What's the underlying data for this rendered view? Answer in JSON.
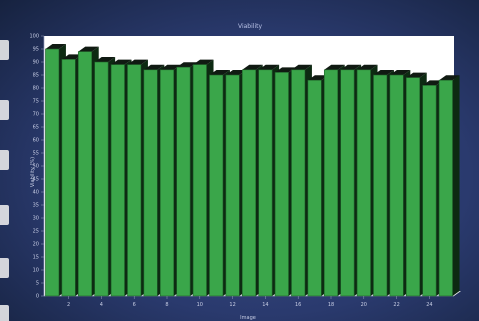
{
  "chart_data": {
    "type": "bar",
    "title": "",
    "subtitle": "Viability",
    "xlabel": "Image",
    "ylabel": "Viability (%)",
    "ylim": [
      0,
      100
    ],
    "ytick_step": 5,
    "xticks": [
      2,
      4,
      6,
      8,
      10,
      12,
      14,
      16,
      18,
      20,
      22,
      24
    ],
    "grid": false,
    "categories": [
      1,
      2,
      3,
      4,
      5,
      6,
      7,
      8,
      9,
      10,
      11,
      12,
      13,
      14,
      15,
      16,
      17,
      18,
      19,
      20,
      21,
      22,
      23,
      24,
      25
    ],
    "values": [
      95,
      91,
      94,
      90,
      89,
      89,
      87,
      87,
      88,
      89,
      85,
      85,
      87,
      87,
      86,
      87,
      83,
      87,
      87,
      87,
      85,
      85,
      84,
      81,
      83
    ],
    "colors": {
      "bar_front": "#3aa64a",
      "bar_side": "#0d2a12",
      "bar_top": "#101a12",
      "plot_bg": "#ffffff",
      "wall": "#ececec"
    }
  }
}
